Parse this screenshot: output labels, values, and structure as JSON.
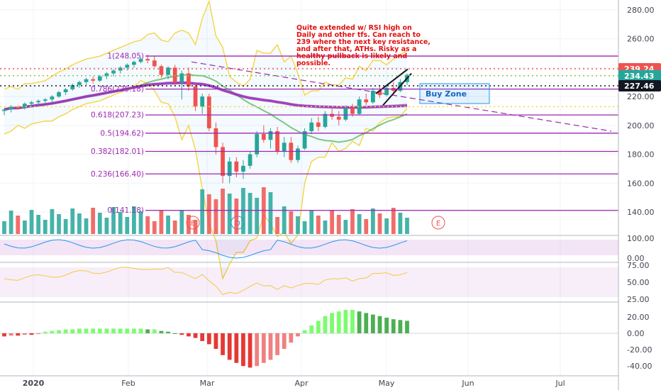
{
  "chart_data": {
    "type": "candlestick",
    "price_axis": {
      "ticks": [
        "280.00",
        "260.00",
        "240.00",
        "220.00",
        "200.00",
        "180.00",
        "160.00",
        "140.00"
      ],
      "tick_values": [
        280,
        260,
        240,
        220,
        200,
        180,
        160,
        140
      ],
      "range": [
        130,
        285
      ]
    },
    "time_axis": {
      "labels": [
        "2020",
        "Feb",
        "Mar",
        "Apr",
        "May",
        "Jun",
        "Jul"
      ]
    },
    "price_badges": [
      {
        "text": "239.24",
        "value": 239.24,
        "color": "#ef5350"
      },
      {
        "text": "234.43",
        "value": 234.43,
        "color": "#26a69a"
      },
      {
        "text": "227.46",
        "value": 227.46,
        "color": "#131722"
      }
    ],
    "fib_levels": [
      {
        "label": "1(248.05)",
        "value": 248.05
      },
      {
        "label": "0.786(225.18)",
        "value": 225.18
      },
      {
        "label": "0.618(207.23)",
        "value": 207.23
      },
      {
        "label": "0.5(194.62)",
        "value": 194.62
      },
      {
        "label": "0.382(182.01)",
        "value": 182.01
      },
      {
        "label": "0.236(166.40)",
        "value": 166.4
      },
      {
        "label": "0(141.18)",
        "value": 141.18
      }
    ],
    "annotation": "Quite extended w/ RSI high on Daily and other tfs. Can reach to 239 where the next key resistance, and after that, ATHs. Risky as a healthy pullback is likely and possible.",
    "buy_zone_label": "Buy Zone",
    "event_markers": [
      "E",
      "D",
      "E"
    ],
    "stoch_panel": {
      "ticks": [
        "100.00",
        "0.00"
      ]
    },
    "rsi_panel": {
      "ticks": [
        "75.00",
        "50.00",
        "25.00"
      ]
    },
    "macd_panel": {
      "ticks": [
        "20.00",
        "0.00",
        "-20.00",
        "-40.00"
      ]
    },
    "candles": [
      [
        210,
        212,
        207,
        211
      ],
      [
        211,
        214,
        209,
        213
      ],
      [
        213,
        214,
        211,
        212
      ],
      [
        212,
        216,
        211,
        215
      ],
      [
        215,
        217,
        213,
        216
      ],
      [
        216,
        218,
        214,
        217
      ],
      [
        217,
        219,
        215,
        218
      ],
      [
        218,
        221,
        216,
        220
      ],
      [
        220,
        224,
        219,
        223
      ],
      [
        223,
        226,
        221,
        225
      ],
      [
        225,
        229,
        224,
        228
      ],
      [
        228,
        231,
        226,
        230
      ],
      [
        230,
        233,
        228,
        232
      ],
      [
        232,
        234,
        229,
        231
      ],
      [
        231,
        235,
        230,
        234
      ],
      [
        234,
        237,
        232,
        236
      ],
      [
        236,
        239,
        234,
        238
      ],
      [
        238,
        241,
        236,
        240
      ],
      [
        240,
        243,
        238,
        242
      ],
      [
        242,
        245,
        240,
        244
      ],
      [
        244,
        247,
        243,
        246
      ],
      [
        246,
        249,
        243,
        245
      ],
      [
        245,
        248,
        240,
        241
      ],
      [
        241,
        242,
        233,
        235
      ],
      [
        235,
        241,
        232,
        240
      ],
      [
        240,
        242,
        228,
        230
      ],
      [
        230,
        238,
        218,
        236
      ],
      [
        236,
        240,
        224,
        227
      ],
      [
        227,
        229,
        210,
        213
      ],
      [
        213,
        222,
        208,
        220
      ],
      [
        220,
        222,
        196,
        198
      ],
      [
        198,
        202,
        180,
        185
      ],
      [
        185,
        188,
        160,
        165
      ],
      [
        165,
        178,
        160,
        175
      ],
      [
        175,
        178,
        164,
        168
      ],
      [
        168,
        176,
        163,
        172
      ],
      [
        172,
        182,
        170,
        180
      ],
      [
        180,
        196,
        178,
        194
      ],
      [
        194,
        200,
        188,
        190
      ],
      [
        190,
        198,
        184,
        196
      ],
      [
        196,
        199,
        180,
        182
      ],
      [
        182,
        192,
        178,
        188
      ],
      [
        188,
        192,
        174,
        176
      ],
      [
        176,
        186,
        174,
        184
      ],
      [
        184,
        198,
        183,
        196
      ],
      [
        196,
        205,
        194,
        202
      ],
      [
        202,
        206,
        196,
        199
      ],
      [
        199,
        210,
        198,
        208
      ],
      [
        208,
        212,
        204,
        206
      ],
      [
        206,
        210,
        200,
        204
      ],
      [
        204,
        214,
        203,
        212
      ],
      [
        212,
        215,
        206,
        208
      ],
      [
        208,
        220,
        207,
        218
      ],
      [
        218,
        222,
        214,
        216
      ],
      [
        216,
        226,
        215,
        224
      ],
      [
        224,
        228,
        219,
        221
      ],
      [
        221,
        227,
        220,
        226
      ],
      [
        226,
        230,
        222,
        224
      ],
      [
        224,
        232,
        223,
        230
      ],
      [
        230,
        236,
        228,
        235
      ]
    ],
    "macd_hist": [
      -4,
      -3,
      -3,
      -2,
      -2,
      -1,
      2,
      3,
      4,
      5,
      5,
      6,
      6,
      6,
      6,
      6,
      6,
      6,
      6,
      6,
      6,
      5,
      5,
      3,
      2,
      0,
      -2,
      -4,
      -6,
      -10,
      -14,
      -20,
      -28,
      -34,
      -38,
      -42,
      -44,
      -42,
      -38,
      -34,
      -28,
      -20,
      -12,
      -4,
      4,
      10,
      16,
      22,
      26,
      28,
      30,
      30,
      28,
      26,
      24,
      22,
      20,
      18,
      17,
      16
    ]
  }
}
